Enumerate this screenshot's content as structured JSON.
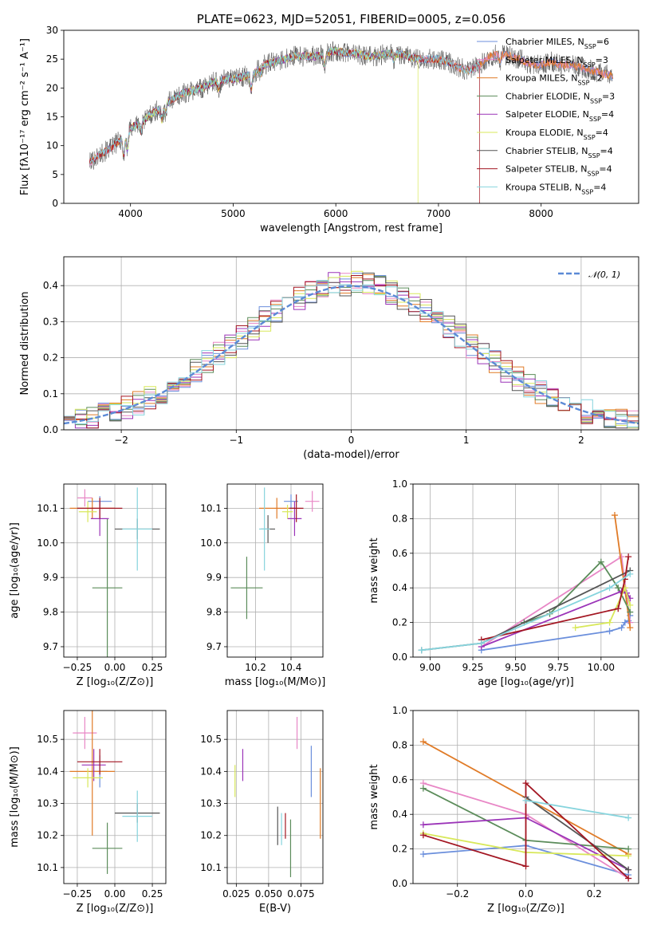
{
  "figure_title": "PLATE=0623, MJD=52051, FIBERID=0005, z=0.056",
  "colors": {
    "Chabrier MILES": "#6b8fdc",
    "Salpeter MILES": "#e887c6",
    "Kroupa MILES": "#e07b27",
    "Chabrier ELODIE": "#5b8c5a",
    "Salpeter ELODIE": "#9b34b8",
    "Kroupa ELODIE": "#d8e85a",
    "Chabrier STELIB": "#555555",
    "Salpeter STELIB": "#a31622",
    "Kroupa STELIB": "#86d4dd",
    "normal": "#5b8ad6",
    "grid": "#b0b0b0"
  },
  "chart_data": [
    {
      "id": "spectrum",
      "type": "line",
      "title": "PLATE=0623, MJD=52051, FIBERID=0005, z=0.056",
      "xlabel": "wavelength [Angstrom, rest frame]",
      "ylabel": "Flux [fλ10⁻¹⁷ erg cm⁻² s⁻¹ A⁻¹]",
      "xlim": [
        3350,
        8950
      ],
      "ylim": [
        0,
        30
      ],
      "xticks": [
        4000,
        5000,
        6000,
        7000,
        8000
      ],
      "yticks": [
        0,
        5,
        10,
        15,
        20,
        25,
        30
      ],
      "grid": false,
      "legend": "right",
      "legend_entries": [
        {
          "name": "Chabrier MILES, N",
          "sub": "SSP",
          "val": "=6"
        },
        {
          "name": "Salpeter MILES, N",
          "sub": "SSP",
          "val": "=3"
        },
        {
          "name": "Kroupa MILES, N",
          "sub": "SSP",
          "val": "=2"
        },
        {
          "name": "Chabrier ELODIE, N",
          "sub": "SSP",
          "val": "=3"
        },
        {
          "name": "Salpeter ELODIE, N",
          "sub": "SSP",
          "val": "=4"
        },
        {
          "name": "Kroupa ELODIE, N",
          "sub": "SSP",
          "val": "=4"
        },
        {
          "name": "Chabrier STELIB, N",
          "sub": "SSP",
          "val": "=4"
        },
        {
          "name": "Salpeter STELIB, N",
          "sub": "SSP",
          "val": "=4"
        },
        {
          "name": "Kroupa STELIB, N",
          "sub": "SSP",
          "val": "=4"
        }
      ],
      "data_envelope": {
        "x": [
          3600,
          3700,
          3800,
          3900,
          4000,
          4100,
          4200,
          4300,
          4400,
          4500,
          4600,
          4700,
          4800,
          4900,
          5000,
          5100,
          5200,
          5300,
          5400,
          5500,
          5600,
          5700,
          5800,
          5900,
          6000,
          6100,
          6200,
          6300,
          6400,
          6500,
          6600,
          6700,
          6800,
          6900,
          7000,
          7100,
          7200,
          7300,
          7400,
          7500,
          7600,
          7700,
          7800,
          7900,
          8000,
          8100,
          8200,
          8300,
          8400,
          8500,
          8600,
          8700
        ],
        "y": [
          7.0,
          8.5,
          9.5,
          11.0,
          13.0,
          14.0,
          15.5,
          16.5,
          18.0,
          19.0,
          19.5,
          20.0,
          21.0,
          21.5,
          21.5,
          22.0,
          22.5,
          24.0,
          24.5,
          25.0,
          25.5,
          25.5,
          25.5,
          26.0,
          26.5,
          26.0,
          26.0,
          25.5,
          25.5,
          26.0,
          26.0,
          25.5,
          25.0,
          25.0,
          25.0,
          24.5,
          23.5,
          23.0,
          24.0,
          25.5,
          26.0,
          25.5,
          25.0,
          24.0,
          24.0,
          24.5,
          24.0,
          24.0,
          23.5,
          23.0,
          22.5,
          22.0
        ]
      }
    },
    {
      "id": "residuals",
      "type": "histogram",
      "xlabel": "(data-model)/error",
      "ylabel": "Normed distribution",
      "xlim": [
        -2.5,
        2.5
      ],
      "ylim": [
        0,
        0.48
      ],
      "xticks": [
        -2,
        -1,
        0,
        1,
        2
      ],
      "yticks": [
        0.0,
        0.1,
        0.2,
        0.3,
        0.4
      ],
      "grid": true,
      "legend": "top-right",
      "legend_label": "𝒩(0, 1)",
      "bin_width": 0.1
    },
    {
      "id": "age-vs-Z",
      "type": "errorbar",
      "xlabel": "Z [log₁₀(Z/Z⊙)]",
      "ylabel": "age  [log₁₀(age/yr)]",
      "xlim": [
        -0.34,
        0.34
      ],
      "ylim": [
        9.67,
        10.17
      ],
      "xticks": [
        -0.25,
        0.0,
        0.25
      ],
      "yticks": [
        9.7,
        9.8,
        9.9,
        10.0,
        10.1
      ],
      "grid": true,
      "points": [
        {
          "model": "Chabrier MILES",
          "x": -0.1,
          "y": 10.12,
          "xerr": 0.08,
          "yerr": 0.015
        },
        {
          "model": "Salpeter MILES",
          "x": -0.2,
          "y": 10.13,
          "xerr": 0.05,
          "yerr": 0.025
        },
        {
          "model": "Kroupa MILES",
          "x": -0.15,
          "y": 10.1,
          "xerr": 0.15,
          "yerr": 0.03
        },
        {
          "model": "Chabrier ELODIE",
          "x": -0.05,
          "y": 9.87,
          "xerr": 0.1,
          "yerr": 0.2
        },
        {
          "model": "Salpeter ELODIE",
          "x": -0.1,
          "y": 10.07,
          "xerr": 0.06,
          "yerr": 0.05
        },
        {
          "model": "Kroupa ELODIE",
          "x": -0.18,
          "y": 10.09,
          "xerr": 0.06,
          "yerr": 0.03
        },
        {
          "model": "Chabrier STELIB",
          "x": 0.15,
          "y": 10.04,
          "xerr": 0.15,
          "yerr": 0.03
        },
        {
          "model": "Salpeter STELIB",
          "x": -0.1,
          "y": 10.1,
          "xerr": 0.15,
          "yerr": 0.03
        },
        {
          "model": "Kroupa STELIB",
          "x": 0.15,
          "y": 10.04,
          "xerr": 0.1,
          "yerr": 0.12
        }
      ]
    },
    {
      "id": "age-vs-mass",
      "type": "errorbar",
      "xlabel": "mass [log₁₀(M/M⊙)]",
      "ylabel": "",
      "xlim": [
        10.04,
        10.58
      ],
      "ylim": [
        9.67,
        10.17
      ],
      "xticks": [
        10.2,
        10.4
      ],
      "yticks": [
        9.7,
        9.8,
        9.9,
        10.0,
        10.1
      ],
      "grid": true,
      "points": [
        {
          "model": "Chabrier MILES",
          "x": 10.4,
          "y": 10.12,
          "xerr": 0.04,
          "yerr": 0.02
        },
        {
          "model": "Salpeter MILES",
          "x": 10.52,
          "y": 10.12,
          "xerr": 0.04,
          "yerr": 0.03
        },
        {
          "model": "Kroupa MILES",
          "x": 10.32,
          "y": 10.1,
          "xerr": 0.1,
          "yerr": 0.03
        },
        {
          "model": "Chabrier ELODIE",
          "x": 10.15,
          "y": 9.87,
          "xerr": 0.09,
          "yerr": 0.09
        },
        {
          "model": "Salpeter ELODIE",
          "x": 10.42,
          "y": 10.07,
          "xerr": 0.04,
          "yerr": 0.05
        },
        {
          "model": "Kroupa ELODIE",
          "x": 10.38,
          "y": 10.09,
          "xerr": 0.03,
          "yerr": 0.02
        },
        {
          "model": "Chabrier STELIB",
          "x": 10.27,
          "y": 10.04,
          "xerr": 0.04,
          "yerr": 0.04
        },
        {
          "model": "Salpeter STELIB",
          "x": 10.43,
          "y": 10.1,
          "xerr": 0.04,
          "yerr": 0.04
        },
        {
          "model": "Kroupa STELIB",
          "x": 10.25,
          "y": 10.04,
          "xerr": 0.03,
          "yerr": 0.12
        }
      ]
    },
    {
      "id": "weight-vs-age",
      "type": "line",
      "xlabel": "age  [log₁₀(age/yr)]",
      "ylabel": "mass weight",
      "xlim": [
        8.9,
        10.22
      ],
      "ylim": [
        0,
        1
      ],
      "xticks": [
        9.0,
        9.25,
        9.5,
        9.75,
        10.0
      ],
      "yticks": [
        0.0,
        0.2,
        0.4,
        0.6,
        0.8,
        1.0
      ],
      "grid": true,
      "series": [
        {
          "model": "Chabrier MILES",
          "x": [
            9.3,
            10.05,
            10.12,
            10.14,
            10.16,
            10.17
          ],
          "y": [
            0.04,
            0.15,
            0.17,
            0.2,
            0.21,
            0.24
          ]
        },
        {
          "model": "Salpeter MILES",
          "x": [
            9.3,
            10.12,
            10.17
          ],
          "y": [
            0.06,
            0.58,
            0.2
          ]
        },
        {
          "model": "Kroupa MILES",
          "x": [
            10.08,
            10.17
          ],
          "y": [
            0.82,
            0.17
          ]
        },
        {
          "model": "Chabrier ELODIE",
          "x": [
            9.55,
            9.7,
            10.0,
            10.1,
            10.17
          ],
          "y": [
            0.2,
            0.25,
            0.55,
            0.4,
            0.26
          ]
        },
        {
          "model": "Salpeter ELODIE",
          "x": [
            9.3,
            10.12,
            10.15,
            10.17
          ],
          "y": [
            0.06,
            0.38,
            0.37,
            0.34
          ]
        },
        {
          "model": "Kroupa ELODIE",
          "x": [
            9.85,
            10.05,
            10.14,
            10.17
          ],
          "y": [
            0.17,
            0.2,
            0.4,
            0.3
          ]
        },
        {
          "model": "Chabrier STELIB",
          "x": [
            8.95,
            9.3,
            10.17
          ],
          "y": [
            0.04,
            0.08,
            0.5
          ]
        },
        {
          "model": "Salpeter STELIB",
          "x": [
            9.3,
            10.1,
            10.14,
            10.16
          ],
          "y": [
            0.1,
            0.28,
            0.45,
            0.58
          ]
        },
        {
          "model": "Kroupa STELIB",
          "x": [
            8.95,
            9.3,
            10.05,
            10.17
          ],
          "y": [
            0.04,
            0.08,
            0.4,
            0.48
          ]
        }
      ]
    },
    {
      "id": "mass-vs-Z",
      "type": "errorbar",
      "xlabel": "Z [log₁₀(Z/Z⊙)]",
      "ylabel": "mass [log₁₀(M/M⊙)]",
      "xlim": [
        -0.34,
        0.34
      ],
      "ylim": [
        10.05,
        10.59
      ],
      "xticks": [
        -0.25,
        0.0,
        0.25
      ],
      "yticks": [
        10.1,
        10.2,
        10.3,
        10.4,
        10.5
      ],
      "grid": true,
      "points": [
        {
          "model": "Chabrier MILES",
          "x": -0.1,
          "y": 10.4,
          "xerr": 0.05,
          "yerr": 0.05
        },
        {
          "model": "Salpeter MILES",
          "x": -0.2,
          "y": 10.52,
          "xerr": 0.08,
          "yerr": 0.05
        },
        {
          "model": "Kroupa MILES",
          "x": -0.15,
          "y": 10.4,
          "xerr": 0.15,
          "yerr": 0.2
        },
        {
          "model": "Chabrier ELODIE",
          "x": -0.05,
          "y": 10.16,
          "xerr": 0.1,
          "yerr": 0.08
        },
        {
          "model": "Salpeter ELODIE",
          "x": -0.14,
          "y": 10.42,
          "xerr": 0.08,
          "yerr": 0.05
        },
        {
          "model": "Kroupa ELODIE",
          "x": -0.18,
          "y": 10.38,
          "xerr": 0.1,
          "yerr": 0.03
        },
        {
          "model": "Chabrier STELIB",
          "x": 0.15,
          "y": 10.27,
          "xerr": 0.15,
          "yerr": 0.03
        },
        {
          "model": "Salpeter STELIB",
          "x": -0.1,
          "y": 10.43,
          "xerr": 0.15,
          "yerr": 0.04
        },
        {
          "model": "Kroupa STELIB",
          "x": 0.15,
          "y": 10.26,
          "xerr": 0.1,
          "yerr": 0.08
        }
      ]
    },
    {
      "id": "mass-vs-EBV",
      "type": "errorbar",
      "xlabel": "E(B-V)",
      "ylabel": "",
      "xlim": [
        0.018,
        0.092
      ],
      "ylim": [
        10.05,
        10.59
      ],
      "xticks": [
        0.025,
        0.05,
        0.075
      ],
      "xtick_labels": [
        "0.025",
        "0.050",
        "0.075"
      ],
      "yticks": [
        10.1,
        10.2,
        10.3,
        10.4,
        10.5
      ],
      "grid": true,
      "points": [
        {
          "model": "Chabrier MILES",
          "x": 0.083,
          "y": 10.4,
          "xerr": 0,
          "yerr": 0.08
        },
        {
          "model": "Salpeter MILES",
          "x": 0.072,
          "y": 10.52,
          "xerr": 0,
          "yerr": 0.05
        },
        {
          "model": "Kroupa MILES",
          "x": 0.09,
          "y": 10.3,
          "xerr": 0,
          "yerr": 0.11
        },
        {
          "model": "Chabrier ELODIE",
          "x": 0.067,
          "y": 10.16,
          "xerr": 0,
          "yerr": 0.09
        },
        {
          "model": "Salpeter ELODIE",
          "x": 0.03,
          "y": 10.42,
          "xerr": 0,
          "yerr": 0.05
        },
        {
          "model": "Kroupa ELODIE",
          "x": 0.024,
          "y": 10.37,
          "xerr": 0,
          "yerr": 0.05
        },
        {
          "model": "Chabrier STELIB",
          "x": 0.057,
          "y": 10.23,
          "xerr": 0,
          "yerr": 0.06
        },
        {
          "model": "Salpeter STELIB",
          "x": 0.063,
          "y": 10.23,
          "xerr": 0,
          "yerr": 0.04
        },
        {
          "model": "Kroupa STELIB",
          "x": 0.06,
          "y": 10.22,
          "xerr": 0,
          "yerr": 0.05
        }
      ]
    },
    {
      "id": "weight-vs-Z",
      "type": "line",
      "xlabel": "Z [log₁₀(Z/Z⊙)]",
      "ylabel": "mass weight",
      "xlim": [
        -0.33,
        0.33
      ],
      "ylim": [
        0,
        1
      ],
      "xticks": [
        -0.2,
        0.0,
        0.2
      ],
      "yticks": [
        0.0,
        0.2,
        0.4,
        0.6,
        0.8,
        1.0
      ],
      "grid": true,
      "series": [
        {
          "model": "Chabrier MILES",
          "x": [
            -0.3,
            0.0,
            0.3
          ],
          "y": [
            0.17,
            0.22,
            0.05
          ]
        },
        {
          "model": "Salpeter MILES",
          "x": [
            -0.3,
            0.0,
            0.3
          ],
          "y": [
            0.58,
            0.4,
            0.03
          ]
        },
        {
          "model": "Kroupa MILES",
          "x": [
            -0.3,
            0.3
          ],
          "y": [
            0.82,
            0.17
          ]
        },
        {
          "model": "Chabrier ELODIE",
          "x": [
            -0.3,
            0.0,
            0.3
          ],
          "y": [
            0.55,
            0.25,
            0.2
          ]
        },
        {
          "model": "Salpeter ELODIE",
          "x": [
            -0.3,
            0.0,
            0.3
          ],
          "y": [
            0.34,
            0.38,
            0.08
          ]
        },
        {
          "model": "Kroupa ELODIE",
          "x": [
            -0.3,
            0.0,
            0.3
          ],
          "y": [
            0.29,
            0.18,
            0.16
          ]
        },
        {
          "model": "Chabrier STELIB",
          "x": [
            0.0,
            0.3
          ],
          "y": [
            0.5,
            0.08
          ]
        },
        {
          "model": "Salpeter STELIB",
          "x": [
            -0.3,
            0.0,
            0.0,
            0.3
          ],
          "y": [
            0.28,
            0.1,
            0.58,
            0.03
          ]
        },
        {
          "model": "Kroupa STELIB",
          "x": [
            0.0,
            0.3
          ],
          "y": [
            0.48,
            0.38
          ]
        }
      ]
    }
  ]
}
